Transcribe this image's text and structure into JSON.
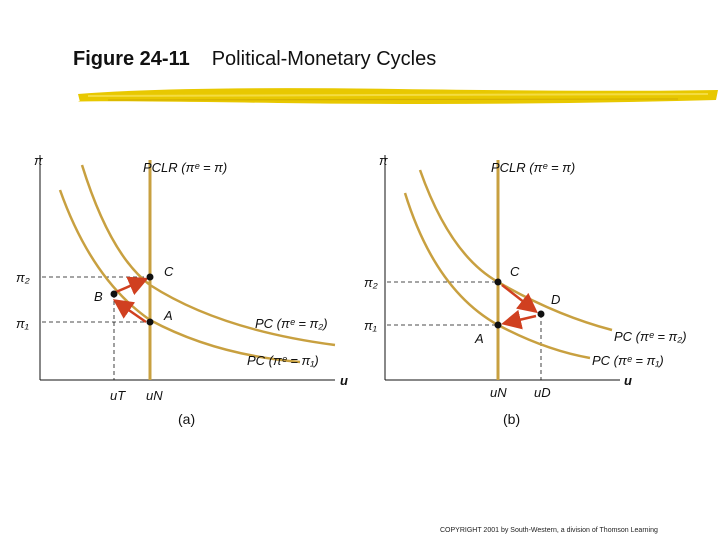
{
  "title": {
    "number": "Figure 24-11",
    "text": "Political-Monetary Cycles"
  },
  "copyright": "COPYRIGHT 2001 by South-Western, a division of Thomson Learning",
  "colors": {
    "curve": "#c8a040",
    "vertical": "#c8a040",
    "arrow": "#d04020",
    "axis": "#111111",
    "brush": "#e8c800"
  },
  "panel_a": {
    "caption": "(a)",
    "y_axis": "π",
    "x_axis": "u",
    "pi2": "π₂",
    "pi1": "π₁",
    "lrpc": "PCLR (πᵉ = π)",
    "pc2": "PC (πᵉ = π₂)",
    "pc1": "PC (πᵉ = π₁)",
    "uN": "uN",
    "uT": "uT",
    "points": {
      "A": "A",
      "B": "B",
      "C": "C"
    }
  },
  "panel_b": {
    "caption": "(b)",
    "y_axis": "π",
    "x_axis": "u",
    "pi2": "π₂",
    "pi1": "π₁",
    "lrpc": "PCLR (πᵉ = π)",
    "pc2": "PC (πᵉ = π₂)",
    "pc1": "PC (πᵉ = π₁)",
    "uN": "uN",
    "uD": "uD",
    "points": {
      "A": "A",
      "C": "C",
      "D": "D"
    }
  }
}
